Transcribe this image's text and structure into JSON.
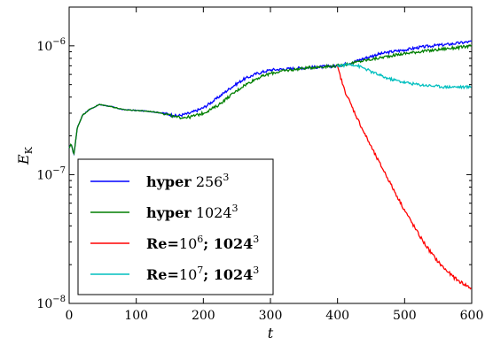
{
  "chart_data": {
    "type": "line",
    "title": "",
    "xlabel": "t",
    "ylabel": {
      "main": "E",
      "sub": "K"
    },
    "xlim": [
      0,
      600
    ],
    "ylim": [
      1e-08,
      2e-06
    ],
    "yscale": "log",
    "grid": false,
    "legend_position": "lower-left",
    "x_ticks": [
      {
        "value": 0,
        "label": "0"
      },
      {
        "value": 100,
        "label": "100"
      },
      {
        "value": 200,
        "label": "200"
      },
      {
        "value": 300,
        "label": "300"
      },
      {
        "value": 400,
        "label": "400"
      },
      {
        "value": 500,
        "label": "500"
      },
      {
        "value": 600,
        "label": "600"
      }
    ],
    "y_ticks": [
      {
        "value": 1e-08,
        "base": "10",
        "exp": "−8"
      },
      {
        "value": 1e-07,
        "base": "10",
        "exp": "−7"
      },
      {
        "value": 1e-06,
        "base": "10",
        "exp": "−6"
      }
    ],
    "series": [
      {
        "key": "hyper256",
        "legend": {
          "bold": "hyper",
          "rest": " 256",
          "sup": "3",
          "tail": ""
        },
        "color": "#0000ff",
        "noise": 0.025,
        "x": [
          0,
          3,
          7,
          12,
          20,
          30,
          45,
          60,
          80,
          100,
          120,
          140,
          160,
          180,
          200,
          220,
          240,
          260,
          280,
          300,
          320,
          340,
          360,
          380,
          400,
          420,
          440,
          460,
          480,
          500,
          520,
          540,
          560,
          580,
          600
        ],
        "y": [
          1.6e-07,
          1.75e-07,
          1.42e-07,
          2.3e-07,
          2.9e-07,
          3.2e-07,
          3.5e-07,
          3.4e-07,
          3.2e-07,
          3.15e-07,
          3.1e-07,
          3e-07,
          2.85e-07,
          3e-07,
          3.3e-07,
          3.9e-07,
          4.7e-07,
          5.5e-07,
          6.1e-07,
          6.5e-07,
          6.6e-07,
          6.7e-07,
          6.8e-07,
          6.9e-07,
          7e-07,
          7.4e-07,
          8e-07,
          8.6e-07,
          9e-07,
          9.3e-07,
          9.7e-07,
          1e-06,
          1.02e-06,
          1.05e-06,
          1.08e-06
        ]
      },
      {
        "key": "hyper1024",
        "legend": {
          "bold": "hyper",
          "rest": " 1024",
          "sup": "3",
          "tail": ""
        },
        "color": "#007f00",
        "noise": 0.025,
        "x": [
          0,
          3,
          7,
          12,
          20,
          30,
          45,
          60,
          80,
          100,
          120,
          140,
          160,
          180,
          200,
          220,
          240,
          260,
          280,
          300,
          320,
          340,
          360,
          380,
          400,
          420,
          440,
          460,
          480,
          500,
          520,
          540,
          560,
          580,
          600
        ],
        "y": [
          1.6e-07,
          1.75e-07,
          1.42e-07,
          2.3e-07,
          2.9e-07,
          3.2e-07,
          3.5e-07,
          3.4e-07,
          3.2e-07,
          3.15e-07,
          3.1e-07,
          3e-07,
          2.78e-07,
          2.8e-07,
          3e-07,
          3.4e-07,
          4.1e-07,
          4.9e-07,
          5.6e-07,
          6.1e-07,
          6.4e-07,
          6.6e-07,
          6.8e-07,
          6.9e-07,
          7e-07,
          7.3e-07,
          7.7e-07,
          8e-07,
          8.4e-07,
          8.7e-07,
          9e-07,
          9.2e-07,
          9.5e-07,
          9.7e-07,
          1e-06
        ]
      },
      {
        "key": "re1e6",
        "legend": {
          "bold": "Re=",
          "rest": "10",
          "sup": "6",
          "tail": "; 1024",
          "sup2": "3"
        },
        "color": "#ff0000",
        "noise": 0.03,
        "x": [
          400,
          405,
          410,
          420,
          430,
          440,
          450,
          460,
          470,
          480,
          490,
          500,
          510,
          520,
          530,
          540,
          550,
          560,
          570,
          580,
          590,
          600
        ],
        "y": [
          6.8e-07,
          5.6e-07,
          4.6e-07,
          3.5e-07,
          2.7e-07,
          2.1e-07,
          1.65e-07,
          1.3e-07,
          1.05e-07,
          8.3e-08,
          6.6e-08,
          5.3e-08,
          4.3e-08,
          3.5e-08,
          2.9e-08,
          2.45e-08,
          2.1e-08,
          1.85e-08,
          1.65e-08,
          1.5e-08,
          1.4e-08,
          1.3e-08
        ]
      },
      {
        "key": "re1e7",
        "legend": {
          "bold": "Re=",
          "rest": "10",
          "sup": "7",
          "tail": "; 1024",
          "sup2": "3"
        },
        "color": "#00bfbf",
        "noise": 0.025,
        "x": [
          400,
          410,
          420,
          430,
          440,
          450,
          460,
          470,
          480,
          490,
          500,
          510,
          520,
          530,
          540,
          550,
          560,
          570,
          580,
          590,
          600
        ],
        "y": [
          7e-07,
          7.1e-07,
          7.2e-07,
          7e-07,
          6.7e-07,
          6.3e-07,
          6e-07,
          5.7e-07,
          5.5e-07,
          5.35e-07,
          5.2e-07,
          5.1e-07,
          5e-07,
          4.95e-07,
          4.9e-07,
          4.85e-07,
          4.8e-07,
          4.8e-07,
          4.8e-07,
          4.78e-07,
          4.8e-07
        ]
      }
    ]
  }
}
